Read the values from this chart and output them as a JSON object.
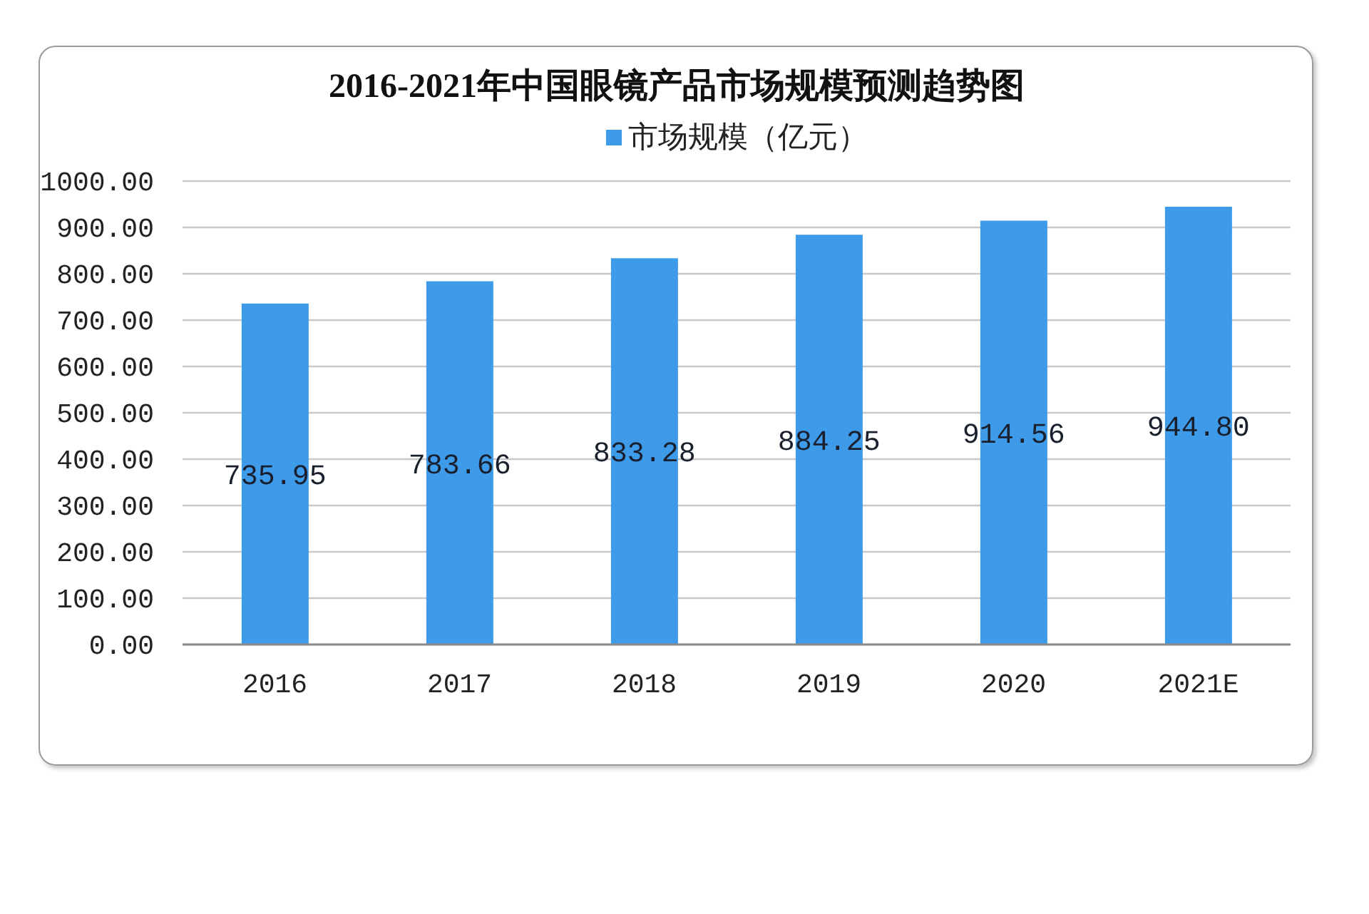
{
  "chart_data": {
    "type": "bar",
    "title": "2016-2021年中国眼镜产品市场规模预测趋势图",
    "categories": [
      "2016",
      "2017",
      "2018",
      "2019",
      "2020",
      "2021E"
    ],
    "series": [
      {
        "name": "市场规模（亿元）",
        "color": "#3d9be9",
        "values": [
          735.95,
          783.66,
          833.28,
          884.25,
          914.56,
          944.8
        ],
        "value_labels": [
          "735.95",
          "783.66",
          "833.28",
          "884.25",
          "914.56",
          "944.80"
        ]
      }
    ],
    "ylim": [
      0,
      1000
    ],
    "yticks": [
      {
        "value": 0,
        "label": "0.00"
      },
      {
        "value": 100,
        "label": "100.00"
      },
      {
        "value": 200,
        "label": "200.00"
      },
      {
        "value": 300,
        "label": "300.00"
      },
      {
        "value": 400,
        "label": "400.00"
      },
      {
        "value": 500,
        "label": "500.00"
      },
      {
        "value": 600,
        "label": "600.00"
      },
      {
        "value": 700,
        "label": "700.00"
      },
      {
        "value": 800,
        "label": "800.00"
      },
      {
        "value": 900,
        "label": "900.00"
      },
      {
        "value": 1000,
        "label": "1000.00"
      }
    ],
    "grid": "y",
    "legend": "top"
  }
}
